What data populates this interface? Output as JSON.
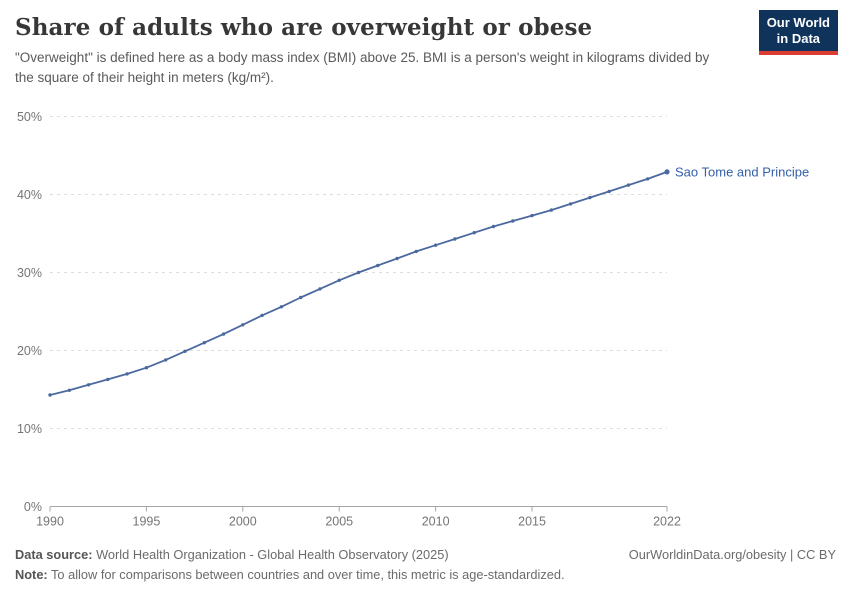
{
  "header": {
    "title": "Share of adults who are overweight or obese",
    "subtitle": "\"Overweight\" is defined here as a body mass index (BMI) above 25. BMI is a person's weight in kilograms divided by the square of their height in meters (kg/m²).",
    "logo": {
      "line1": "Our World",
      "line2": "in Data",
      "bg_color": "#10335c",
      "bar_color": "#dc3d33"
    }
  },
  "chart_data": {
    "type": "line",
    "title": "Share of adults who are overweight or obese",
    "xlabel": "",
    "ylabel": "",
    "xlim": [
      1990,
      2022
    ],
    "ylim": [
      0,
      50
    ],
    "grid": "horizontal-dashed",
    "legend_position": "end-of-line-label",
    "x_ticks": [
      1990,
      1995,
      2000,
      2005,
      2010,
      2015,
      2022
    ],
    "y_ticks": [
      0,
      10,
      20,
      30,
      40,
      50
    ],
    "y_tick_suffix": "%",
    "series": [
      {
        "name": "Sao Tome and Principe",
        "color": "#4b699f",
        "label_color": "#3360a9",
        "x": [
          1990,
          1991,
          1992,
          1993,
          1994,
          1995,
          1996,
          1997,
          1998,
          1999,
          2000,
          2001,
          2002,
          2003,
          2004,
          2005,
          2006,
          2007,
          2008,
          2009,
          2010,
          2011,
          2012,
          2013,
          2014,
          2015,
          2016,
          2017,
          2018,
          2019,
          2020,
          2021,
          2022
        ],
        "values": [
          14.3,
          14.9,
          15.6,
          16.3,
          17.0,
          17.8,
          18.8,
          19.9,
          21.0,
          22.1,
          23.3,
          24.5,
          25.6,
          26.8,
          27.9,
          29.0,
          30.0,
          30.9,
          31.8,
          32.7,
          33.5,
          34.3,
          35.1,
          35.9,
          36.6,
          37.3,
          38.0,
          38.8,
          39.6,
          40.4,
          41.2,
          42.0,
          42.9
        ]
      }
    ]
  },
  "footer": {
    "datasource_label": "Data source:",
    "datasource_text": " World Health Organization - Global Health Observatory (2025)",
    "note_label": "Note:",
    "note_text": " To allow for comparisons between countries and over time, this metric is age-standardized.",
    "link": "OurWorldinData.org/obesity | CC BY"
  }
}
